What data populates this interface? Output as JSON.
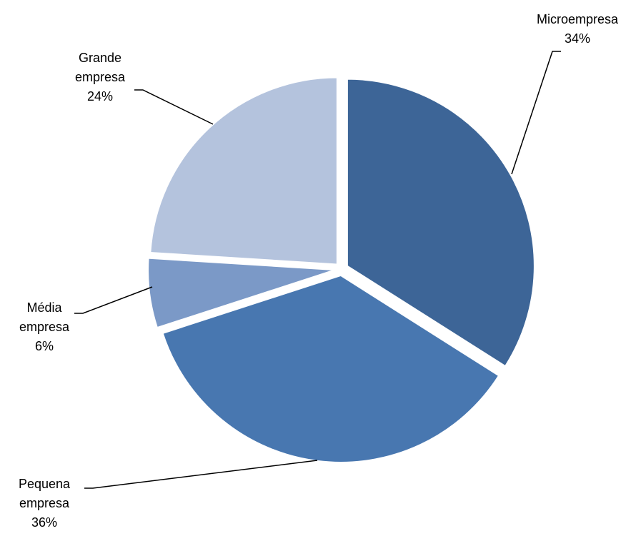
{
  "chart_data": {
    "type": "pie",
    "title": "",
    "slices": [
      {
        "name": "Microempresa",
        "label_lines": [
          "Microempresa"
        ],
        "percent_label": "34%",
        "value": 34,
        "color": "#3d6597"
      },
      {
        "name": "Pequena empresa",
        "label_lines": [
          "Pequena",
          "empresa"
        ],
        "percent_label": "36%",
        "value": 36,
        "color": "#4877b0"
      },
      {
        "name": "Média empresa",
        "label_lines": [
          "Média",
          "empresa"
        ],
        "percent_label": "6%",
        "value": 6,
        "color": "#7b99c7"
      },
      {
        "name": "Grande empresa",
        "label_lines": [
          "Grande",
          "empresa"
        ],
        "percent_label": "24%",
        "value": 24,
        "color": "#b4c3dd"
      }
    ],
    "start_angle": "12 o'clock, clockwise",
    "exploded": true,
    "legend": "none",
    "data_labels": "outside with leader lines"
  }
}
